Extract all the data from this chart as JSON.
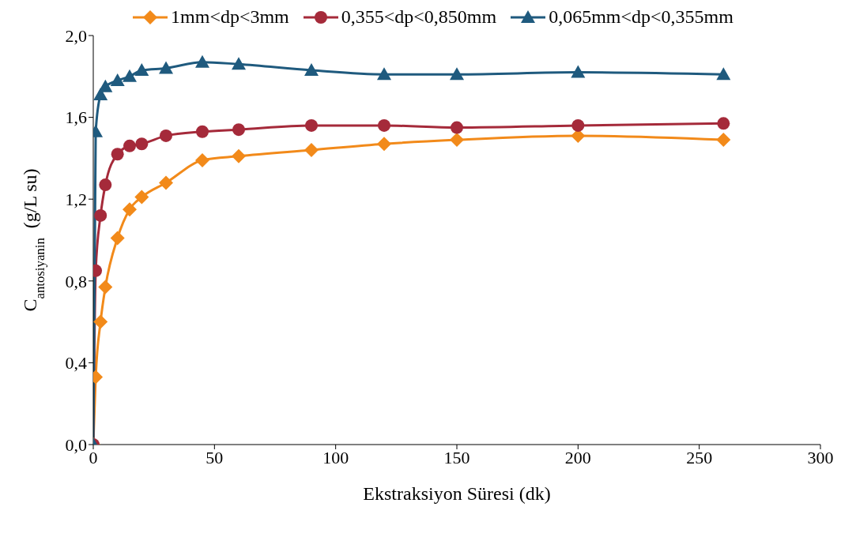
{
  "chart_data": {
    "type": "line",
    "xlabel": "Ekstraksiyon Süresi (dk)",
    "ylabel": "C$_{antosiyanin}$  (g/L su)",
    "x": [
      0,
      1,
      3,
      5,
      10,
      15,
      20,
      30,
      45,
      60,
      90,
      120,
      150,
      200,
      260
    ],
    "series": [
      {
        "name": "1mm<dp<3mm",
        "color": "#f28a1a",
        "marker": "diamond",
        "values": [
          0,
          0.33,
          0.6,
          0.77,
          1.01,
          1.15,
          1.21,
          1.28,
          1.39,
          1.41,
          1.44,
          1.47,
          1.49,
          1.51,
          1.49
        ]
      },
      {
        "name": "0,355<dp<0,850mm",
        "color": "#a52a3a",
        "marker": "circle",
        "values": [
          0,
          0.85,
          1.12,
          1.27,
          1.42,
          1.46,
          1.47,
          1.51,
          1.53,
          1.54,
          1.56,
          1.56,
          1.55,
          1.56,
          1.57
        ]
      },
      {
        "name": "0,065mm<dp<0,355mm",
        "color": "#1f5a7e",
        "marker": "triangle",
        "values": [
          0,
          1.53,
          1.71,
          1.75,
          1.78,
          1.8,
          1.83,
          1.84,
          1.87,
          1.86,
          1.83,
          1.81,
          1.81,
          1.82,
          1.81
        ]
      }
    ],
    "xlim": [
      0,
      300
    ],
    "xticks": [
      0,
      50,
      100,
      150,
      200,
      250,
      300
    ],
    "ylim": [
      0,
      2
    ],
    "yticks": [
      {
        "value": 0,
        "label": "0,0"
      },
      {
        "value": 0.4,
        "label": "0,4"
      },
      {
        "value": 0.8,
        "label": "0,8"
      },
      {
        "value": 1.2,
        "label": "1,2"
      },
      {
        "value": 1.6,
        "label": "1,6"
      },
      {
        "value": 2,
        "label": "2,0"
      }
    ],
    "grid": false,
    "legend": "top",
    "line_style": "solid"
  }
}
